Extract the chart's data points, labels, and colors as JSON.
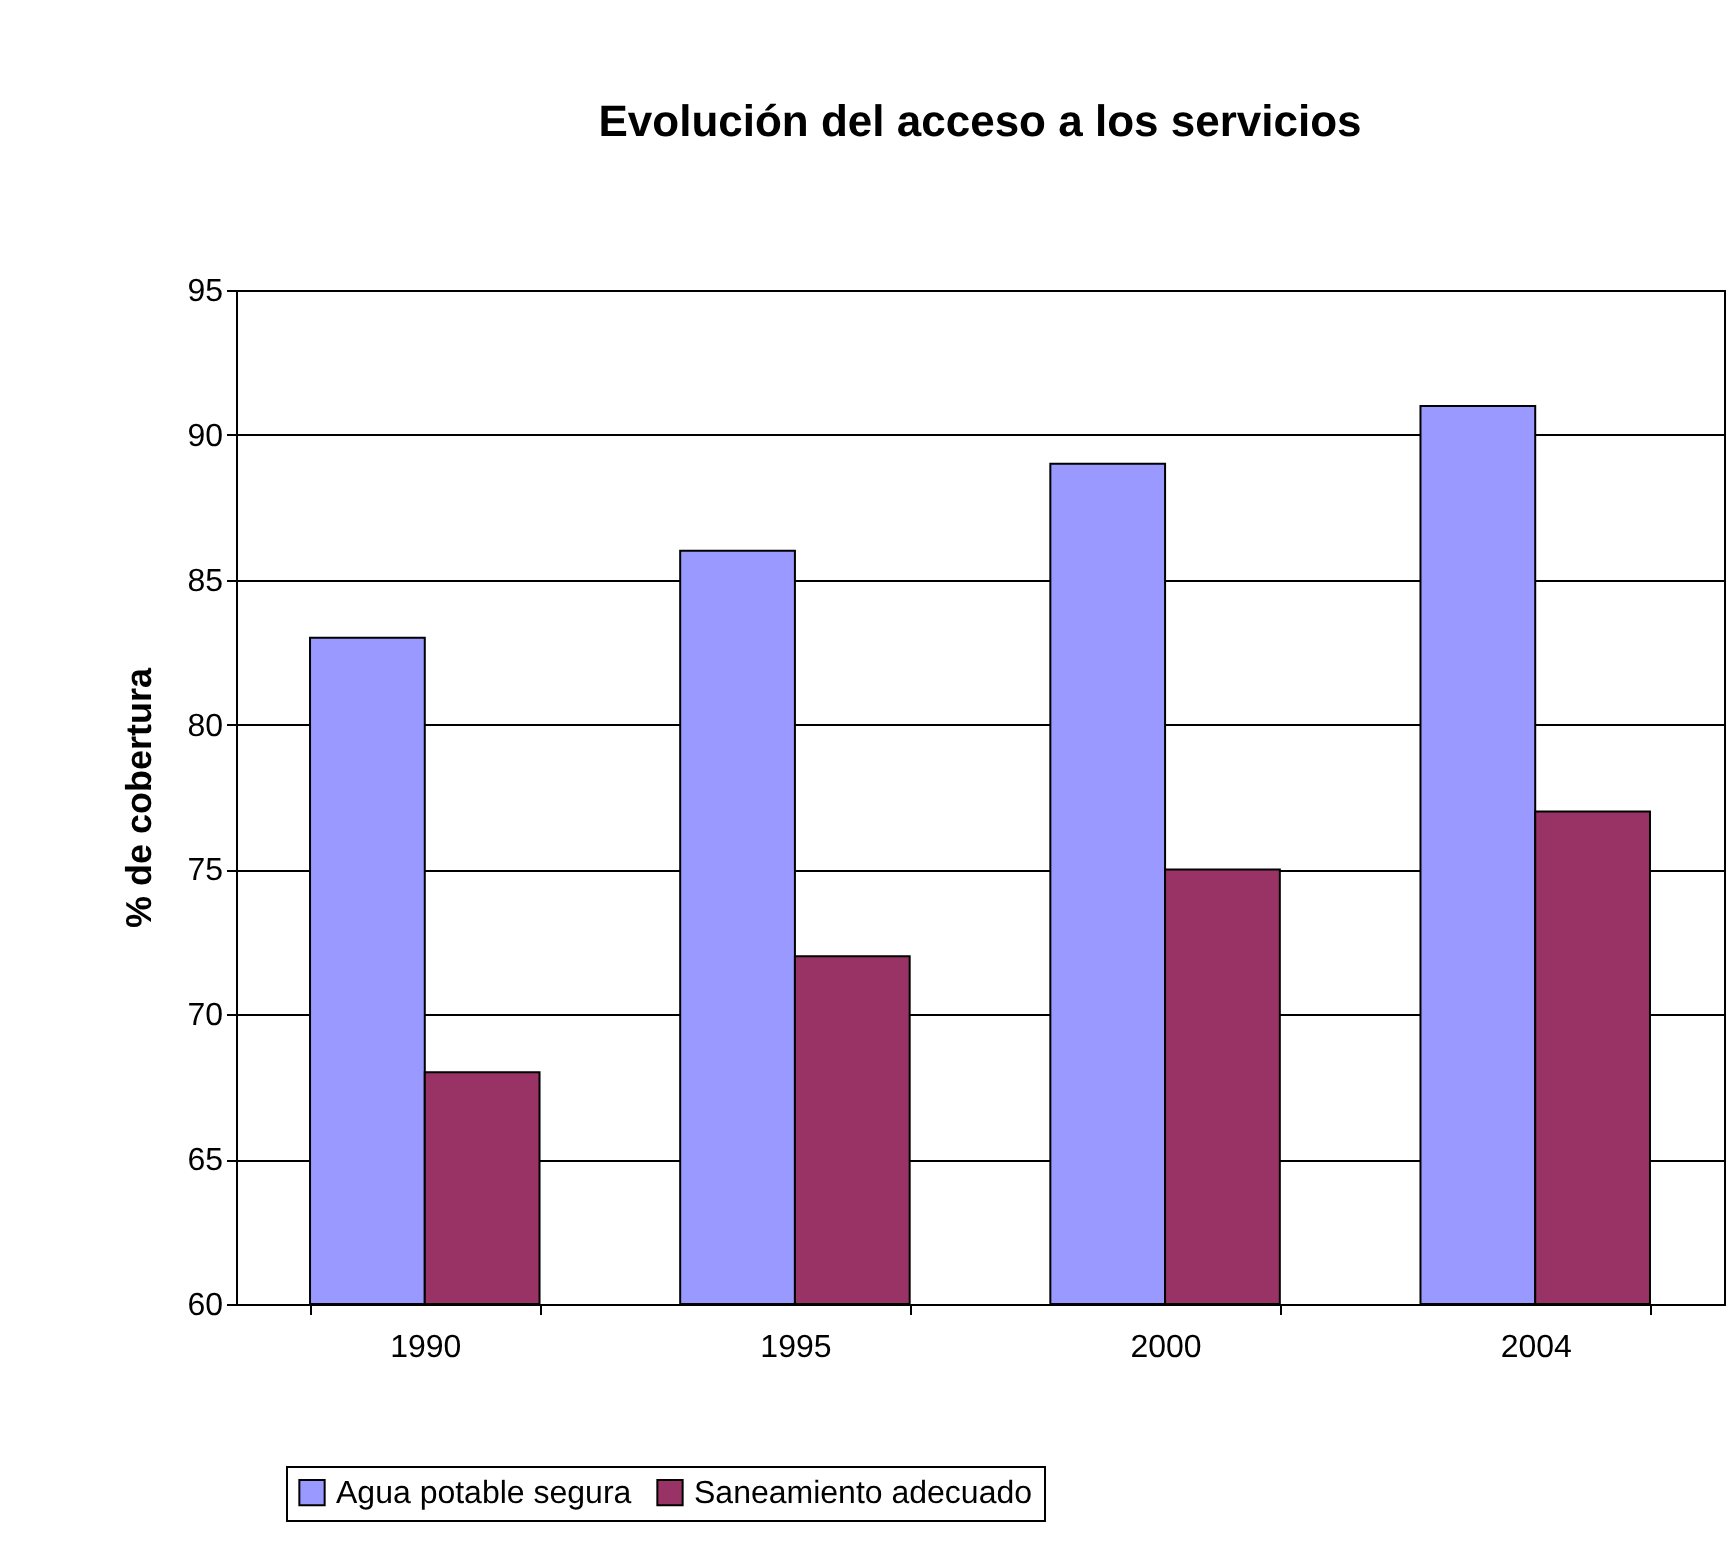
{
  "chart_data": {
    "type": "bar",
    "title": "Evolución del acceso a los servicios",
    "ylabel": "% de cobertura",
    "categories": [
      "1990",
      "1995",
      "2000",
      "2004"
    ],
    "series": [
      {
        "name": "Agua potable segura",
        "color": "#9999ff",
        "values": [
          83,
          86,
          89,
          91
        ]
      },
      {
        "name": "Saneamiento adecuado",
        "color": "#993366",
        "values": [
          68,
          72,
          75,
          77
        ]
      }
    ],
    "ylim": [
      60,
      95
    ],
    "yticks": [
      60,
      65,
      70,
      75,
      80,
      85,
      90,
      95
    ],
    "grid": "y",
    "legend": "bottom"
  }
}
